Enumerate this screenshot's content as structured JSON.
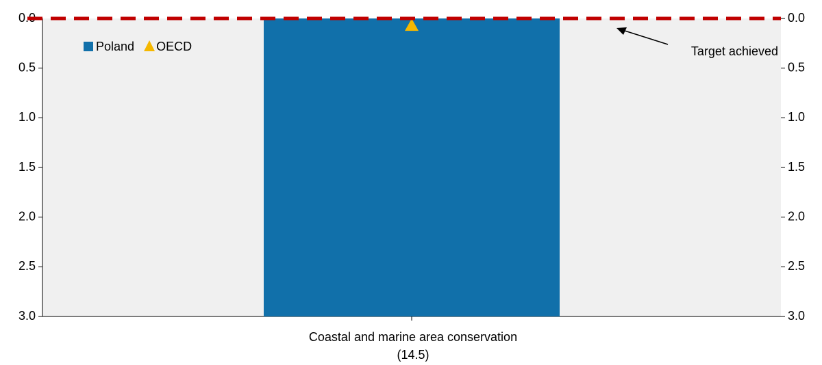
{
  "chart_data": {
    "type": "bar",
    "categories": [
      "Coastal and marine area conservation\n(14.5)"
    ],
    "series": [
      {
        "name": "Poland",
        "color": "#1170aa",
        "marker": "bar",
        "values": [
          3.0
        ]
      },
      {
        "name": "OECD",
        "color": "#f5b800",
        "marker": "triangle",
        "values": [
          0.07
        ]
      }
    ],
    "target_line": {
      "value": 0,
      "color": "#c00000"
    },
    "annotation": "Target achieved",
    "ylim": [
      0,
      3
    ],
    "y_inverted": true,
    "yticks": [
      {
        "value": 0,
        "label": "0.0"
      },
      0.5,
      {
        "value": 1,
        "label": "1.0"
      },
      1.5,
      {
        "value": 2,
        "label": "2.0"
      },
      2.5,
      {
        "value": 3,
        "label": "3.0"
      }
    ],
    "right_axis": true
  }
}
